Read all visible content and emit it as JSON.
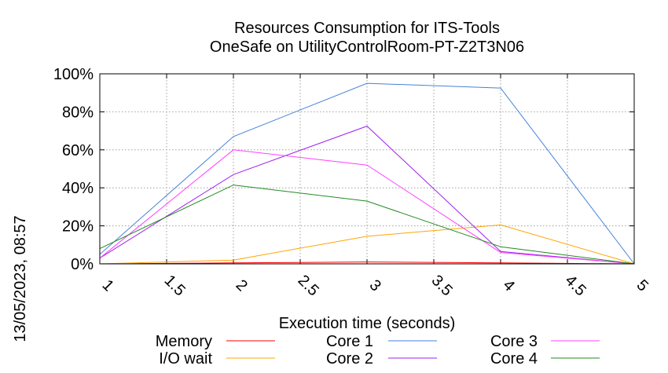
{
  "timestamp": "13/05/2023, 08:57",
  "chart_data": {
    "type": "line",
    "title": "Resources Consumption for ITS-Tools",
    "subtitle": "OneSafe on UtilityControlRoom-PT-Z2T3N06",
    "xlabel": "Execution time (seconds)",
    "ylabel": "",
    "xlim": [
      1,
      5
    ],
    "ylim": [
      0,
      100
    ],
    "x_ticks": [
      1,
      1.5,
      2,
      2.5,
      3,
      3.5,
      4,
      4.5,
      5
    ],
    "x_tick_labels": [
      "1",
      "1.5",
      "2",
      "2.5",
      "3",
      "3.5",
      "4",
      "4.5",
      "5"
    ],
    "y_ticks": [
      0,
      20,
      40,
      60,
      80,
      100
    ],
    "y_tick_labels": [
      "0%",
      "20%",
      "40%",
      "60%",
      "80%",
      "100%"
    ],
    "grid": true,
    "legend_position": "bottom",
    "x": [
      1,
      2,
      3,
      4,
      5
    ],
    "series": [
      {
        "name": "Memory",
        "color": "#ff0000",
        "values": [
          0,
          0.5,
          1,
          0.5,
          0
        ]
      },
      {
        "name": "I/O wait",
        "color": "#ffa500",
        "values": [
          0,
          2,
          14.5,
          20.5,
          0
        ]
      },
      {
        "name": "Core 1",
        "color": "#4682d8",
        "values": [
          5,
          67,
          95,
          92.5,
          0
        ]
      },
      {
        "name": "Core 2",
        "color": "#a020f0",
        "values": [
          3,
          47,
          72.5,
          6.5,
          0
        ]
      },
      {
        "name": "Core 3",
        "color": "#ff40ff",
        "values": [
          3,
          60,
          52,
          6,
          0
        ]
      },
      {
        "name": "Core 4",
        "color": "#228b22",
        "values": [
          8,
          41.5,
          33,
          9,
          0
        ]
      }
    ]
  }
}
